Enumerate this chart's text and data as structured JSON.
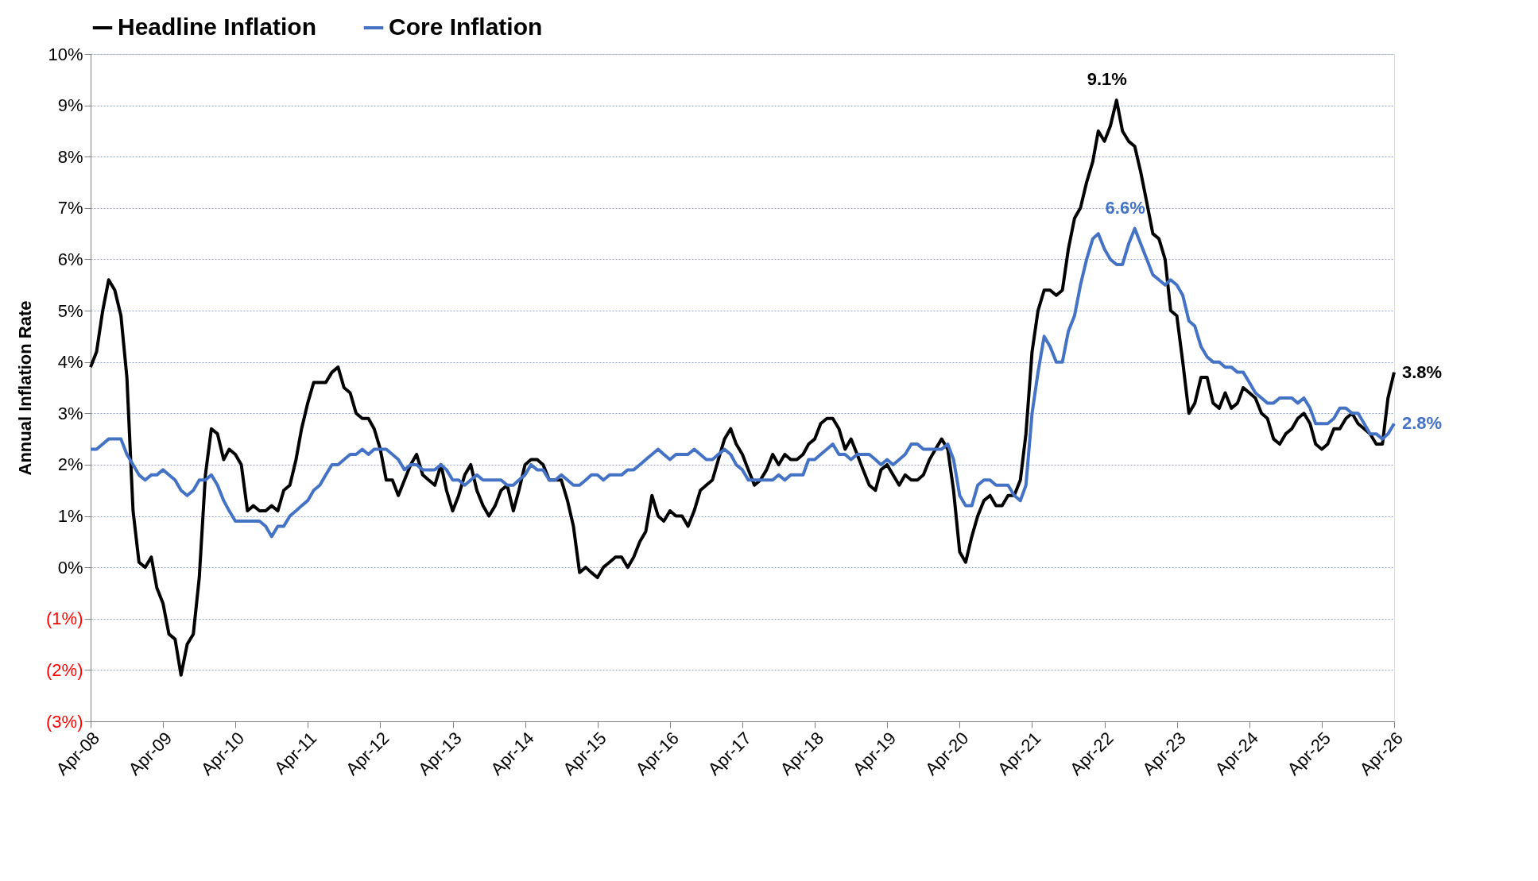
{
  "chart_data": {
    "type": "line",
    "ylabel": "Annual Inflation Rate",
    "legend": "top",
    "grid": "y",
    "marker": "none",
    "line_style": "solid",
    "xlim": [
      "2008-04",
      "2026-04"
    ],
    "ylim": [
      -3,
      10
    ],
    "yticks": [
      {
        "value": -3,
        "label": "(3%)"
      },
      {
        "value": -2,
        "label": "(2%)"
      },
      {
        "value": -1,
        "label": "(1%)"
      },
      {
        "value": 0,
        "label": "0%"
      },
      {
        "value": 1,
        "label": "1%"
      },
      {
        "value": 2,
        "label": "2%"
      },
      {
        "value": 3,
        "label": "3%"
      },
      {
        "value": 4,
        "label": "4%"
      },
      {
        "value": 5,
        "label": "5%"
      },
      {
        "value": 6,
        "label": "6%"
      },
      {
        "value": 7,
        "label": "7%"
      },
      {
        "value": 8,
        "label": "8%"
      },
      {
        "value": 9,
        "label": "9%"
      },
      {
        "value": 10,
        "label": "10%"
      }
    ],
    "xticks": [
      {
        "value": "2008-04",
        "label": "Apr-08"
      },
      {
        "value": "2009-04",
        "label": "Apr-09"
      },
      {
        "value": "2010-04",
        "label": "Apr-10"
      },
      {
        "value": "2011-04",
        "label": "Apr-11"
      },
      {
        "value": "2012-04",
        "label": "Apr-12"
      },
      {
        "value": "2013-04",
        "label": "Apr-13"
      },
      {
        "value": "2014-04",
        "label": "Apr-14"
      },
      {
        "value": "2015-04",
        "label": "Apr-15"
      },
      {
        "value": "2016-04",
        "label": "Apr-16"
      },
      {
        "value": "2017-04",
        "label": "Apr-17"
      },
      {
        "value": "2018-04",
        "label": "Apr-18"
      },
      {
        "value": "2019-04",
        "label": "Apr-19"
      },
      {
        "value": "2020-04",
        "label": "Apr-20"
      },
      {
        "value": "2021-04",
        "label": "Apr-21"
      },
      {
        "value": "2022-04",
        "label": "Apr-22"
      },
      {
        "value": "2023-04",
        "label": "Apr-23"
      },
      {
        "value": "2024-04",
        "label": "Apr-24"
      },
      {
        "value": "2025-04",
        "label": "Apr-25"
      },
      {
        "value": "2026-04",
        "label": "Apr-26"
      }
    ],
    "x": [
      "2008-04",
      "2008-05",
      "2008-06",
      "2008-07",
      "2008-08",
      "2008-09",
      "2008-10",
      "2008-11",
      "2008-12",
      "2009-01",
      "2009-02",
      "2009-03",
      "2009-04",
      "2009-05",
      "2009-06",
      "2009-07",
      "2009-08",
      "2009-09",
      "2009-10",
      "2009-11",
      "2009-12",
      "2010-01",
      "2010-02",
      "2010-03",
      "2010-04",
      "2010-05",
      "2010-06",
      "2010-07",
      "2010-08",
      "2010-09",
      "2010-10",
      "2010-11",
      "2010-12",
      "2011-01",
      "2011-02",
      "2011-03",
      "2011-04",
      "2011-05",
      "2011-06",
      "2011-07",
      "2011-08",
      "2011-09",
      "2011-10",
      "2011-11",
      "2011-12",
      "2012-01",
      "2012-02",
      "2012-03",
      "2012-04",
      "2012-05",
      "2012-06",
      "2012-07",
      "2012-08",
      "2012-09",
      "2012-10",
      "2012-11",
      "2012-12",
      "2013-01",
      "2013-02",
      "2013-03",
      "2013-04",
      "2013-05",
      "2013-06",
      "2013-07",
      "2013-08",
      "2013-09",
      "2013-10",
      "2013-11",
      "2013-12",
      "2014-01",
      "2014-02",
      "2014-03",
      "2014-04",
      "2014-05",
      "2014-06",
      "2014-07",
      "2014-08",
      "2014-09",
      "2014-10",
      "2014-11",
      "2014-12",
      "2015-01",
      "2015-02",
      "2015-03",
      "2015-04",
      "2015-05",
      "2015-06",
      "2015-07",
      "2015-08",
      "2015-09",
      "2015-10",
      "2015-11",
      "2015-12",
      "2016-01",
      "2016-02",
      "2016-03",
      "2016-04",
      "2016-05",
      "2016-06",
      "2016-07",
      "2016-08",
      "2016-09",
      "2016-10",
      "2016-11",
      "2016-12",
      "2017-01",
      "2017-02",
      "2017-03",
      "2017-04",
      "2017-05",
      "2017-06",
      "2017-07",
      "2017-08",
      "2017-09",
      "2017-10",
      "2017-11",
      "2017-12",
      "2018-01",
      "2018-02",
      "2018-03",
      "2018-04",
      "2018-05",
      "2018-06",
      "2018-07",
      "2018-08",
      "2018-09",
      "2018-10",
      "2018-11",
      "2018-12",
      "2019-01",
      "2019-02",
      "2019-03",
      "2019-04",
      "2019-05",
      "2019-06",
      "2019-07",
      "2019-08",
      "2019-09",
      "2019-10",
      "2019-11",
      "2019-12",
      "2020-01",
      "2020-02",
      "2020-03",
      "2020-04",
      "2020-05",
      "2020-06",
      "2020-07",
      "2020-08",
      "2020-09",
      "2020-10",
      "2020-11",
      "2020-12",
      "2021-01",
      "2021-02",
      "2021-03",
      "2021-04",
      "2021-05",
      "2021-06",
      "2021-07",
      "2021-08",
      "2021-09",
      "2021-10",
      "2021-11",
      "2021-12",
      "2022-01",
      "2022-02",
      "2022-03",
      "2022-04",
      "2022-05",
      "2022-06",
      "2022-07",
      "2022-08",
      "2022-09",
      "2022-10",
      "2022-11",
      "2022-12",
      "2023-01",
      "2023-02",
      "2023-03",
      "2023-04",
      "2023-05",
      "2023-06",
      "2023-07",
      "2023-08",
      "2023-09",
      "2023-10",
      "2023-11",
      "2023-12",
      "2024-01",
      "2024-02",
      "2024-03",
      "2024-04",
      "2024-05",
      "2024-06",
      "2024-07",
      "2024-08",
      "2024-09",
      "2024-10",
      "2024-11",
      "2024-12",
      "2025-01",
      "2025-02",
      "2025-03",
      "2025-04",
      "2025-05",
      "2025-06",
      "2025-07",
      "2025-08",
      "2025-09",
      "2025-10",
      "2025-11",
      "2025-12",
      "2026-01",
      "2026-02",
      "2026-03",
      "2026-04"
    ],
    "series": [
      {
        "name": "Headline Inflation",
        "color": "#000000",
        "values": [
          3.9,
          4.2,
          5.0,
          5.6,
          5.4,
          4.9,
          3.7,
          1.1,
          0.1,
          0.0,
          0.2,
          -0.4,
          -0.7,
          -1.3,
          -1.4,
          -2.1,
          -1.5,
          -1.3,
          -0.2,
          1.8,
          2.7,
          2.6,
          2.1,
          2.3,
          2.2,
          2.0,
          1.1,
          1.2,
          1.1,
          1.1,
          1.2,
          1.1,
          1.5,
          1.6,
          2.1,
          2.7,
          3.2,
          3.6,
          3.6,
          3.6,
          3.8,
          3.9,
          3.5,
          3.4,
          3.0,
          2.9,
          2.9,
          2.7,
          2.3,
          1.7,
          1.7,
          1.4,
          1.7,
          2.0,
          2.2,
          1.8,
          1.7,
          1.6,
          2.0,
          1.5,
          1.1,
          1.4,
          1.8,
          2.0,
          1.5,
          1.2,
          1.0,
          1.2,
          1.5,
          1.6,
          1.1,
          1.5,
          2.0,
          2.1,
          2.1,
          2.0,
          1.7,
          1.7,
          1.7,
          1.3,
          0.8,
          -0.1,
          0.0,
          -0.1,
          -0.2,
          0.0,
          0.1,
          0.2,
          0.2,
          0.0,
          0.2,
          0.5,
          0.7,
          1.4,
          1.0,
          0.9,
          1.1,
          1.0,
          1.0,
          0.8,
          1.1,
          1.5,
          1.6,
          1.7,
          2.1,
          2.5,
          2.7,
          2.4,
          2.2,
          1.9,
          1.6,
          1.7,
          1.9,
          2.2,
          2.0,
          2.2,
          2.1,
          2.1,
          2.2,
          2.4,
          2.5,
          2.8,
          2.9,
          2.9,
          2.7,
          2.3,
          2.5,
          2.2,
          1.9,
          1.6,
          1.5,
          1.9,
          2.0,
          1.8,
          1.6,
          1.8,
          1.7,
          1.7,
          1.8,
          2.1,
          2.3,
          2.5,
          2.3,
          1.5,
          0.3,
          0.1,
          0.6,
          1.0,
          1.3,
          1.4,
          1.2,
          1.2,
          1.4,
          1.4,
          1.7,
          2.6,
          4.2,
          5.0,
          5.4,
          5.4,
          5.3,
          5.4,
          6.2,
          6.8,
          7.0,
          7.5,
          7.9,
          8.5,
          8.3,
          8.6,
          9.1,
          8.5,
          8.3,
          8.2,
          7.7,
          7.1,
          6.5,
          6.4,
          6.0,
          5.0,
          4.9,
          4.0,
          3.0,
          3.2,
          3.7,
          3.7,
          3.2,
          3.1,
          3.4,
          3.1,
          3.2,
          3.5,
          3.4,
          3.3,
          3.0,
          2.9,
          2.5,
          2.4,
          2.6,
          2.7,
          2.9,
          3.0,
          2.8,
          2.4,
          2.3,
          2.4,
          2.7,
          2.7,
          2.9,
          3.0,
          2.8,
          2.7,
          2.6,
          2.4,
          2.4,
          3.3,
          3.8
        ]
      },
      {
        "name": "Core Inflation",
        "color": "#4472c4",
        "values": [
          2.3,
          2.3,
          2.4,
          2.5,
          2.5,
          2.5,
          2.2,
          2.0,
          1.8,
          1.7,
          1.8,
          1.8,
          1.9,
          1.8,
          1.7,
          1.5,
          1.4,
          1.5,
          1.7,
          1.7,
          1.8,
          1.6,
          1.3,
          1.1,
          0.9,
          0.9,
          0.9,
          0.9,
          0.9,
          0.8,
          0.6,
          0.8,
          0.8,
          1.0,
          1.1,
          1.2,
          1.3,
          1.5,
          1.6,
          1.8,
          2.0,
          2.0,
          2.1,
          2.2,
          2.2,
          2.3,
          2.2,
          2.3,
          2.3,
          2.3,
          2.2,
          2.1,
          1.9,
          2.0,
          2.0,
          1.9,
          1.9,
          1.9,
          2.0,
          1.9,
          1.7,
          1.7,
          1.6,
          1.7,
          1.8,
          1.7,
          1.7,
          1.7,
          1.7,
          1.6,
          1.6,
          1.7,
          1.8,
          2.0,
          1.9,
          1.9,
          1.7,
          1.7,
          1.8,
          1.7,
          1.6,
          1.6,
          1.7,
          1.8,
          1.8,
          1.7,
          1.8,
          1.8,
          1.8,
          1.9,
          1.9,
          2.0,
          2.1,
          2.2,
          2.3,
          2.2,
          2.1,
          2.2,
          2.2,
          2.2,
          2.3,
          2.2,
          2.1,
          2.1,
          2.2,
          2.3,
          2.2,
          2.0,
          1.9,
          1.7,
          1.7,
          1.7,
          1.7,
          1.7,
          1.8,
          1.7,
          1.8,
          1.8,
          1.8,
          2.1,
          2.1,
          2.2,
          2.3,
          2.4,
          2.2,
          2.2,
          2.1,
          2.2,
          2.2,
          2.2,
          2.1,
          2.0,
          2.1,
          2.0,
          2.1,
          2.2,
          2.4,
          2.4,
          2.3,
          2.3,
          2.3,
          2.3,
          2.4,
          2.1,
          1.4,
          1.2,
          1.2,
          1.6,
          1.7,
          1.7,
          1.6,
          1.6,
          1.6,
          1.4,
          1.3,
          1.6,
          3.0,
          3.8,
          4.5,
          4.3,
          4.0,
          4.0,
          4.6,
          4.9,
          5.5,
          6.0,
          6.4,
          6.5,
          6.2,
          6.0,
          5.9,
          5.9,
          6.3,
          6.6,
          6.3,
          6.0,
          5.7,
          5.6,
          5.5,
          5.6,
          5.5,
          5.3,
          4.8,
          4.7,
          4.3,
          4.1,
          4.0,
          4.0,
          3.9,
          3.9,
          3.8,
          3.8,
          3.6,
          3.4,
          3.3,
          3.2,
          3.2,
          3.3,
          3.3,
          3.3,
          3.2,
          3.3,
          3.1,
          2.8,
          2.8,
          2.8,
          2.9,
          3.1,
          3.1,
          3.0,
          3.0,
          2.8,
          2.6,
          2.6,
          2.5,
          2.6,
          2.8
        ]
      }
    ],
    "annotations": [
      {
        "text": "9.1%",
        "x": "2022-06",
        "y": 9.1
      },
      {
        "text": "6.6%",
        "x": "2022-09",
        "y": 6.6
      },
      {
        "text": "3.8%",
        "x": "2026-04",
        "y": 3.8
      },
      {
        "text": "2.8%",
        "x": "2026-04",
        "y": 2.8
      }
    ]
  }
}
